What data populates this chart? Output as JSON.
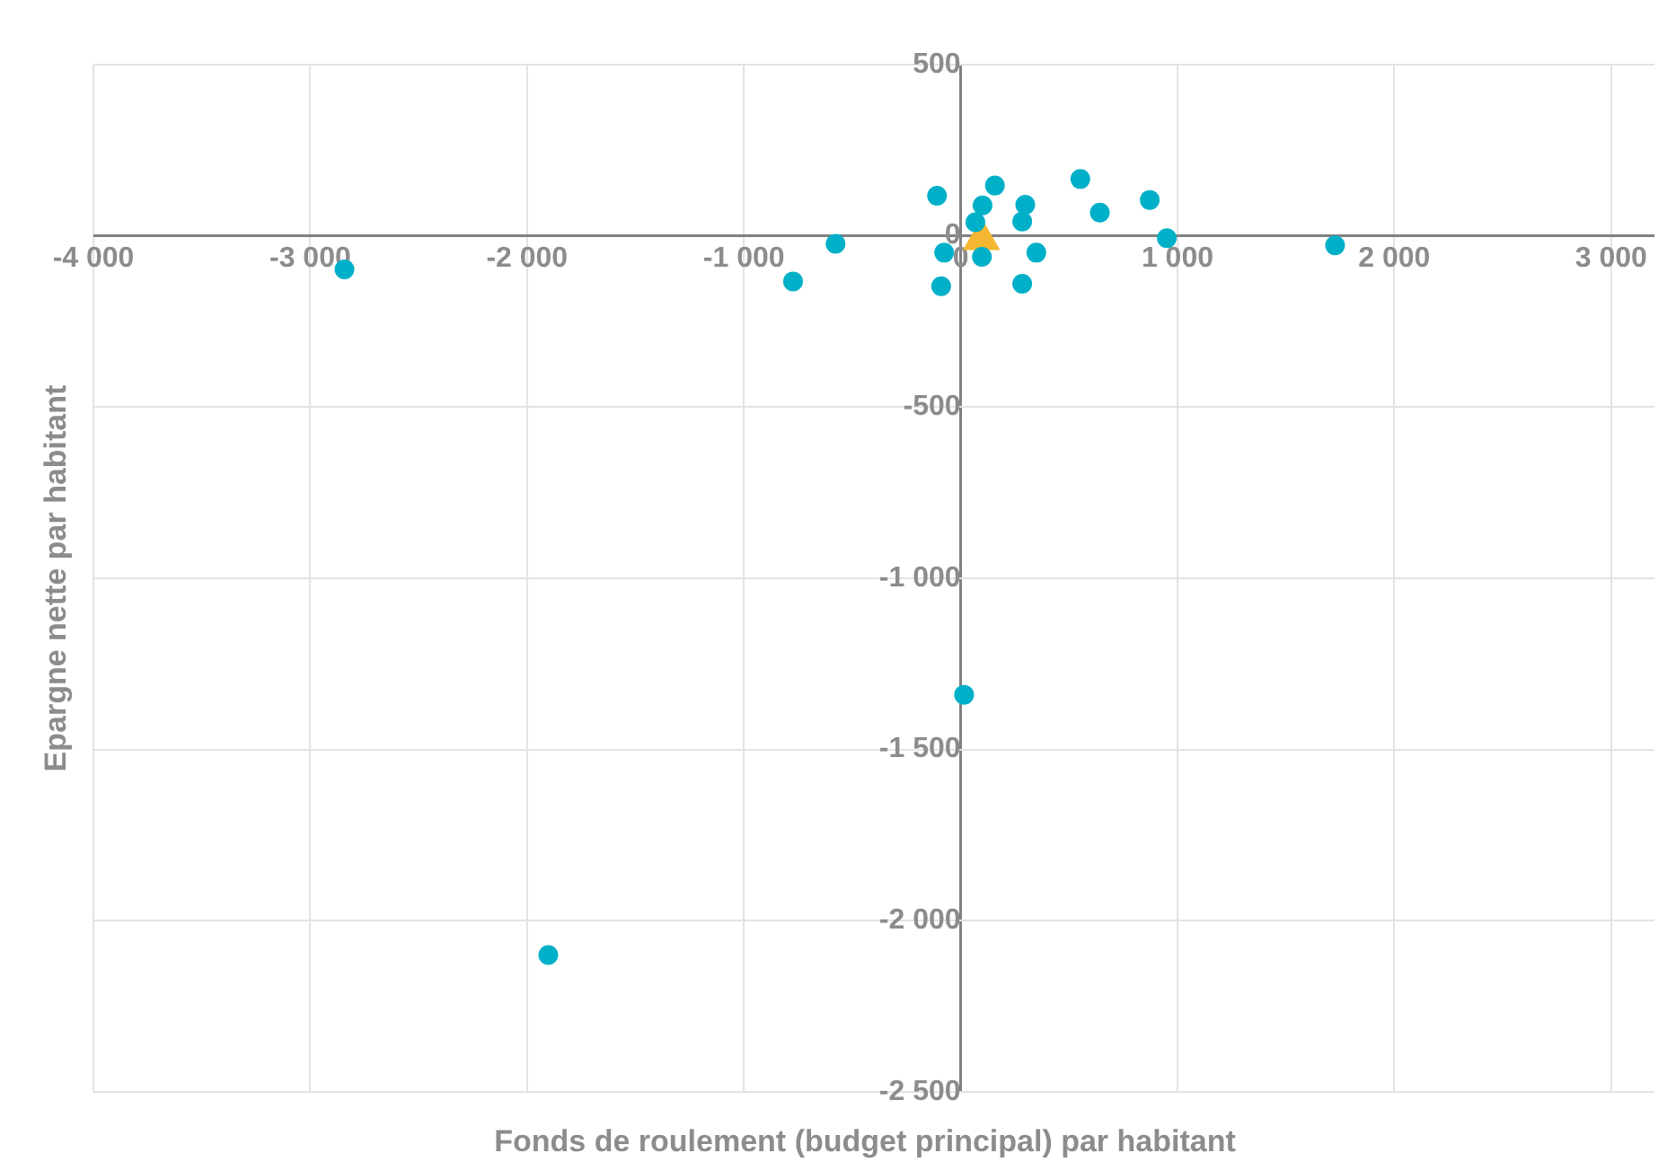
{
  "chart_data": {
    "type": "scatter",
    "xlabel": "Fonds de roulement (budget principal) par habitant",
    "ylabel": "Epargne nette par habitant",
    "xlim": [
      -4000,
      3200
    ],
    "ylim": [
      -2500,
      500
    ],
    "xticks": [
      {
        "value": -4000,
        "label": "-4 000"
      },
      {
        "value": -3000,
        "label": "-3 000"
      },
      {
        "value": -2000,
        "label": "-2 000"
      },
      {
        "value": -1000,
        "label": "-1 000"
      },
      0,
      {
        "value": 1000,
        "label": "1 000"
      },
      {
        "value": 2000,
        "label": "2 000"
      },
      {
        "value": 3000,
        "label": "3 000"
      }
    ],
    "yticks": [
      {
        "value": -2500,
        "label": "-2 500"
      },
      {
        "value": -2000,
        "label": "-2 000"
      },
      {
        "value": -1500,
        "label": "-1 500"
      },
      {
        "value": -1000,
        "label": "-1 000"
      },
      -500,
      0,
      500
    ],
    "grid": true,
    "series": [
      {
        "color": "#00b0c8",
        "marker": "circle",
        "x": [
          -109,
          158,
          101,
          298,
          68,
          284,
          552,
          642,
          872,
          951,
          -577,
          -773,
          -76,
          -90,
          98,
          349,
          284,
          1727,
          -2842,
          16,
          -1902
        ],
        "values": [
          117,
          147,
          89,
          91,
          40,
          42,
          166,
          68,
          105,
          -7,
          -23,
          -133,
          -49,
          -147,
          -61,
          -49,
          -140,
          -28,
          -98,
          -1340,
          -2100
        ]
      },
      {
        "color": "#f5b731",
        "marker": "triangle",
        "x": [
          96
        ],
        "values": [
          -10
        ]
      }
    ]
  }
}
